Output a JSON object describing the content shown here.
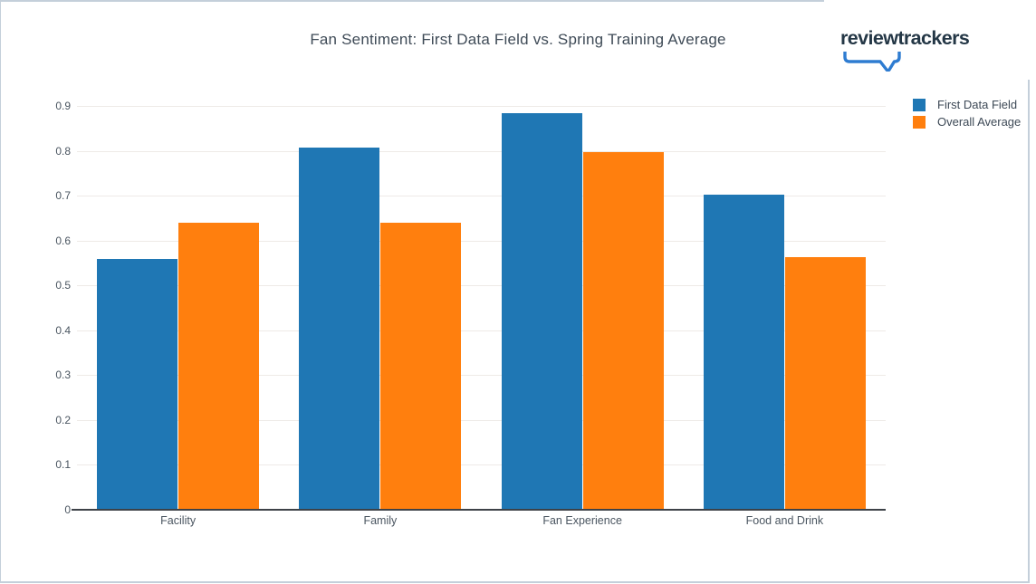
{
  "page": {
    "title": "Fan Sentiment: First Data Field vs. Spring Training Average",
    "logo_text": "reviewtrackers"
  },
  "colors": {
    "series_blue": "#1f77b4",
    "series_orange": "#ff7f0e",
    "logo_navy": "#243746",
    "logo_blue": "#2e7cd1",
    "gridline": "#eeeae7",
    "axis_line": "#3d4248",
    "tick_text": "#4a5560",
    "title_text": "#3f4b57",
    "frame_border": "#c4cfda"
  },
  "chart_data": {
    "type": "bar",
    "title": "Fan Sentiment: First Data Field vs. Spring Training Average",
    "categories": [
      "Facility",
      "Family",
      "Fan Experience",
      "Food and Drink"
    ],
    "series": [
      {
        "name": "First Data Field",
        "color": "#1f77b4",
        "values": [
          0.56,
          0.807,
          0.883,
          0.702
        ]
      },
      {
        "name": "Overall Average",
        "color": "#ff7f0e",
        "values": [
          0.639,
          0.64,
          0.797,
          0.564
        ]
      }
    ],
    "xlabel": "",
    "ylabel": "",
    "ylim": [
      0,
      0.9
    ],
    "ytick_labels": [
      "0",
      "0.1",
      "0.2",
      "0.3",
      "0.4",
      "0.5",
      "0.6",
      "0.7",
      "0.8",
      "0.9"
    ],
    "grid": true,
    "legend_position": "top-right"
  }
}
